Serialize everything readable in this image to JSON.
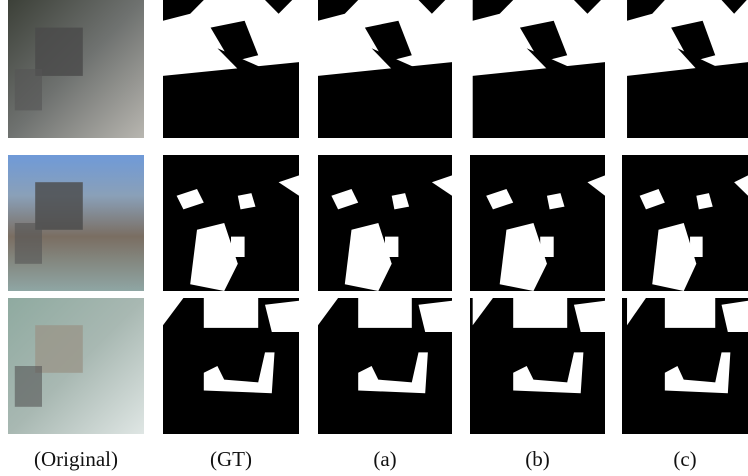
{
  "columns": [
    {
      "label": "(Original)"
    },
    {
      "label": "(GT)"
    },
    {
      "label": "(a)"
    },
    {
      "label": "(b)"
    },
    {
      "label": "(c)"
    }
  ]
}
